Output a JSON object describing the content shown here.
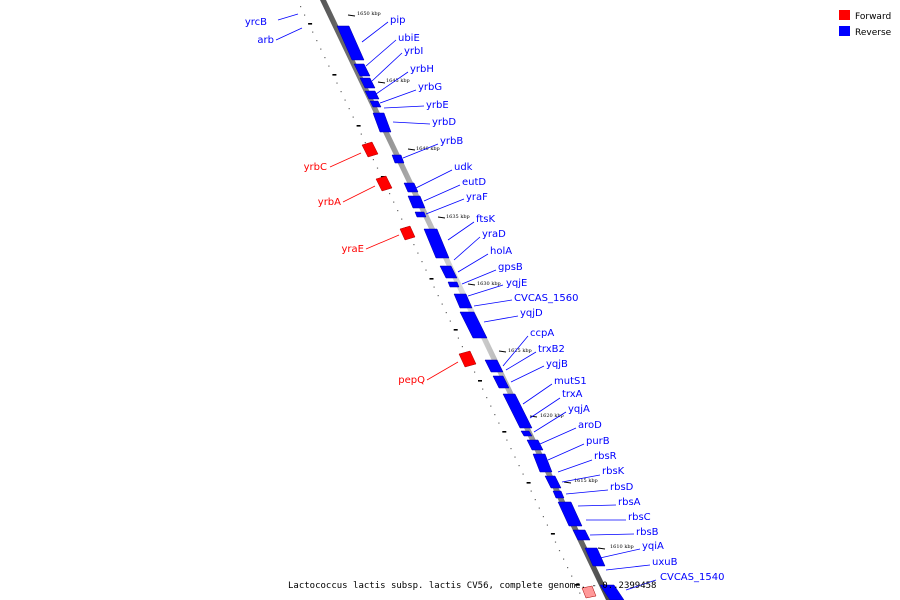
{
  "legend": {
    "forward_label": "Forward",
    "reverse_label": "Reverse",
    "forward_color": "#ff0000",
    "reverse_color": "#0000ff"
  },
  "caption": "Lactococcus lactis subsp. lactis CV56, complete genome. - 0..2399458",
  "ticks": [
    "1650 kbp",
    "1645 kbp",
    "1640 kbp",
    "1635 kbp",
    "1630 kbp",
    "1625 kbp",
    "1620 kbp",
    "1615 kbp",
    "1610 kbp"
  ],
  "reverse_genes": [
    "pip",
    "ubiE",
    "yrbI",
    "yrbH",
    "yrbG",
    "yrbE",
    "yrbD",
    "yrbB",
    "udk",
    "eutD",
    "yraF",
    "ftsK",
    "yraD",
    "holA",
    "gpsB",
    "yqjE",
    "CVCAS_1560",
    "yqjD",
    "ccpA",
    "trxB2",
    "yqjB",
    "mutS1",
    "trxA",
    "yqjA",
    "aroD",
    "purB",
    "rbsR",
    "rbsK",
    "rbsD",
    "rbsA",
    "rbsC",
    "rbsB",
    "yqiA",
    "uxuB",
    "CVCAS_1540"
  ],
  "forward_genes": [
    "yrcB",
    "arb",
    "yrbC",
    "yrbA",
    "yraE",
    "pepQ"
  ]
}
